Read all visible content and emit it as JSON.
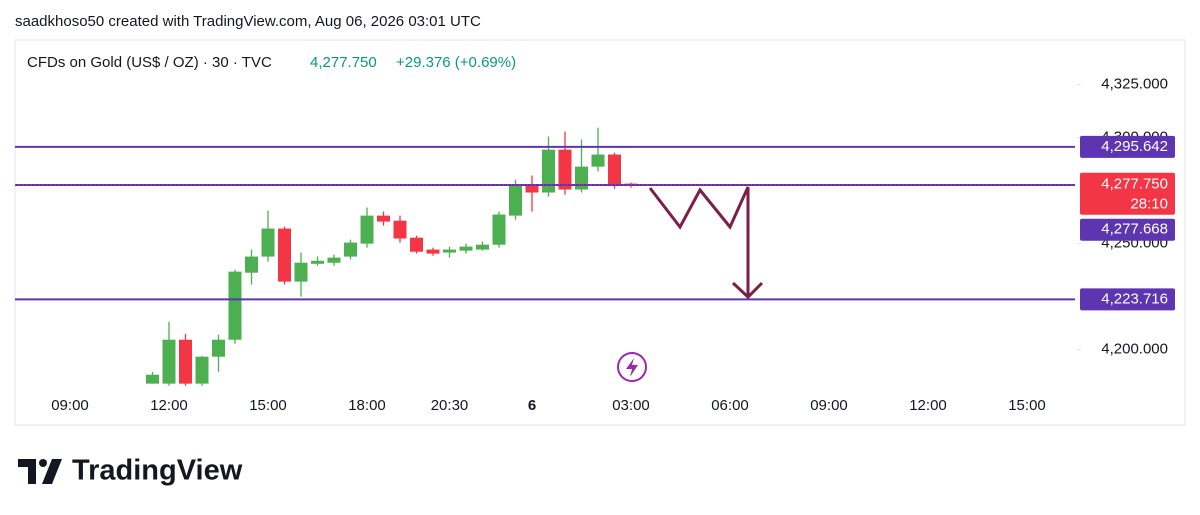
{
  "header": {
    "attribution": "saadkhoso50 created with TradingView.com, Aug 06, 2026 03:01 UTC",
    "brand": "TradingView"
  },
  "chart_data": {
    "type": "candlestick",
    "title": "CFDs on Gold (US$ / OZ) · 30 · TVC",
    "change": "+29.376 (+0.69%)",
    "last_price": {
      "value": 4277.75,
      "label": "4,277.750",
      "countdown": "28:10"
    },
    "up_color": "#4caf50",
    "down_color": "#f23645",
    "categories": [
      null,
      null,
      "09:00",
      null,
      null,
      null,
      null,
      null,
      "12:00",
      null,
      null,
      null,
      null,
      null,
      "15:00",
      null,
      null,
      null,
      null,
      null,
      "18:00",
      null,
      null,
      null,
      null,
      "20:30",
      null,
      null,
      null,
      null,
      "6",
      null,
      null,
      null,
      null,
      null,
      "03:00",
      null,
      null,
      null,
      null,
      null,
      "06:00",
      null,
      null,
      null,
      null,
      null,
      "09:00",
      null,
      null,
      null,
      null,
      null,
      "12:00",
      null,
      null,
      null,
      null,
      null,
      "15:00",
      null,
      null
    ],
    "open": [
      null,
      null,
      null,
      null,
      null,
      null,
      null,
      4184.0,
      4184.0,
      4204.7,
      4184.0,
      4196.7,
      4204.7,
      4236.3,
      4243.9,
      4257.1,
      4232.1,
      4240.5,
      4241.0,
      4243.9,
      4250.0,
      4263.2,
      4260.8,
      4252.8,
      4247.2,
      4245.8,
      4246.7,
      4247.2,
      4249.5,
      4263.2,
      4277.8,
      4274.1,
      4294.3,
      4275.5,
      4286.3,
      4292.0,
      4278.3,
      null,
      null,
      null,
      null,
      null,
      null,
      null,
      null,
      null,
      null,
      null,
      null,
      null,
      null,
      null,
      null,
      null,
      null,
      null,
      null,
      null,
      null,
      null,
      null,
      null,
      null
    ],
    "high": [
      null,
      null,
      null,
      null,
      null,
      null,
      null,
      4189.6,
      4213.2,
      4207.5,
      4197.0,
      4207.1,
      4237.7,
      4247.2,
      4265.6,
      4258.0,
      4245.8,
      4244.0,
      4244.8,
      4251.9,
      4267.0,
      4265.1,
      4263.2,
      4253.8,
      4248.1,
      4248.6,
      4250.0,
      4251.0,
      4265.1,
      4280.2,
      4282.1,
      4300.5,
      4302.8,
      4299.1,
      4304.7,
      4292.9,
      4278.8,
      null,
      null,
      null,
      null,
      null,
      null,
      null,
      null,
      null,
      null,
      null,
      null,
      null,
      null,
      null,
      null,
      null,
      null,
      null,
      null,
      null,
      null,
      null,
      null,
      null,
      null
    ],
    "low": [
      null,
      null,
      null,
      null,
      null,
      null,
      null,
      4184.0,
      4183.0,
      4183.0,
      4183.0,
      4189.6,
      4202.8,
      4230.7,
      4241.5,
      4230.7,
      4225.0,
      4239.6,
      4239.6,
      4242.5,
      4248.1,
      4258.5,
      4250.5,
      4245.3,
      4244.3,
      4243.4,
      4245.3,
      4246.7,
      4248.1,
      4261.3,
      4265.1,
      4272.2,
      4273.1,
      4274.1,
      4284.0,
      4275.9,
      4276.4,
      null,
      null,
      null,
      null,
      null,
      null,
      null,
      null,
      null,
      null,
      null,
      null,
      null,
      null,
      null,
      null,
      null,
      null,
      null,
      null,
      null,
      null,
      null,
      null,
      null,
      null
    ],
    "close": [
      null,
      null,
      null,
      null,
      null,
      null,
      null,
      4188.2,
      4204.7,
      4184.0,
      4196.7,
      4204.7,
      4236.8,
      4243.9,
      4257.1,
      4232.1,
      4241.0,
      4241.9,
      4243.4,
      4250.5,
      4263.2,
      4260.4,
      4252.4,
      4246.2,
      4245.3,
      4247.2,
      4248.6,
      4249.5,
      4263.7,
      4277.8,
      4274.1,
      4294.3,
      4275.5,
      4286.3,
      4292.0,
      4277.8,
      4277.75,
      null,
      null,
      null,
      null,
      null,
      null,
      null,
      null,
      null,
      null,
      null,
      null,
      null,
      null,
      null,
      null,
      null,
      null,
      null,
      null,
      null,
      null,
      null,
      null,
      null,
      null
    ],
    "ylim": [
      4181,
      4346
    ],
    "yticks": [
      {
        "value": 4200,
        "label": "4,200.000"
      },
      {
        "value": 4250,
        "label": "4,250.000"
      },
      {
        "value": 4300,
        "label": "4,300.000"
      },
      {
        "value": 4325,
        "label": "4,325.000"
      }
    ],
    "hlines": [
      {
        "value": 4295.642,
        "label": "4,295.642",
        "color": "#5e35b1"
      },
      {
        "value": 4277.668,
        "label": "4,277.668",
        "color": "#5e35b1"
      },
      {
        "value": 4223.716,
        "label": "4,223.716",
        "color": "#5e35b1"
      }
    ]
  }
}
